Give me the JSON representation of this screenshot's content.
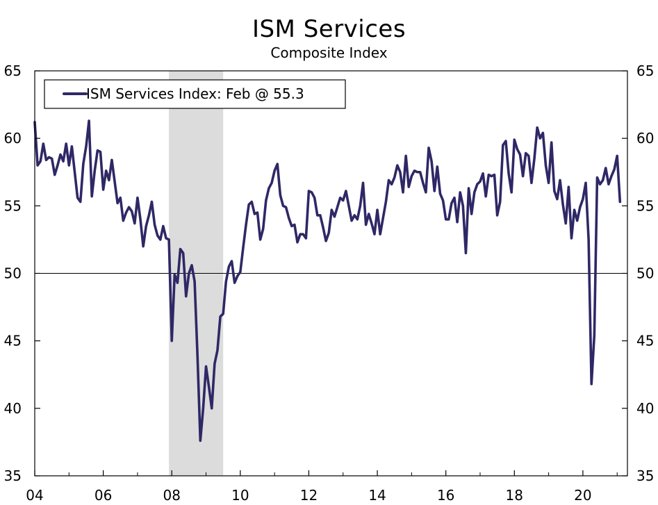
{
  "chart_data": {
    "type": "line",
    "title": "ISM Services",
    "subtitle": "Composite Index",
    "xlabel": "",
    "ylabel": "",
    "x_start": 2004.0,
    "x_step_months": 1,
    "xlim": [
      2004.0,
      2021.3
    ],
    "ylim": [
      35,
      65
    ],
    "y_ticks": [
      35,
      40,
      45,
      50,
      55,
      60,
      65
    ],
    "y_tick_labels": [
      "35",
      "40",
      "45",
      "50",
      "55",
      "60",
      "65"
    ],
    "x_ticks": [
      2004,
      2006,
      2008,
      2010,
      2012,
      2014,
      2016,
      2018,
      2020
    ],
    "x_tick_labels": [
      "04",
      "06",
      "08",
      "10",
      "12",
      "14",
      "16",
      "18",
      "20"
    ],
    "reference_line": 50,
    "recession_shading": [
      2007.917,
      2009.5
    ],
    "legend": {
      "label": "ISM Services Index: Feb @ 55.3",
      "placement": "top-left"
    },
    "colors": {
      "line": "#2e2866",
      "recession": "#dcdcdc",
      "axis": "#000000"
    },
    "series": [
      {
        "name": "ISM Services Index: Feb @ 55.3",
        "values": [
          61.2,
          58.0,
          58.3,
          59.6,
          58.4,
          58.6,
          58.5,
          57.3,
          58.0,
          58.8,
          58.3,
          59.6,
          58.0,
          59.4,
          57.5,
          55.6,
          55.3,
          58.1,
          59.4,
          61.3,
          55.7,
          57.6,
          59.1,
          59.0,
          56.2,
          57.6,
          56.9,
          58.4,
          56.8,
          55.2,
          55.6,
          53.9,
          54.5,
          54.9,
          54.6,
          53.7,
          55.6,
          54.0,
          52.0,
          53.5,
          54.3,
          55.3,
          53.6,
          52.8,
          52.5,
          53.5,
          52.6,
          52.5,
          45.0,
          49.9,
          49.3,
          51.8,
          51.5,
          48.3,
          50.0,
          50.6,
          49.4,
          43.9,
          37.6,
          40.0,
          43.1,
          41.6,
          40.0,
          43.3,
          44.3,
          46.8,
          47.0,
          49.4,
          50.5,
          50.9,
          49.3,
          49.8,
          50.1,
          51.9,
          53.6,
          55.1,
          55.3,
          54.4,
          54.5,
          52.5,
          53.3,
          55.4,
          56.3,
          56.7,
          57.6,
          58.1,
          55.8,
          55.0,
          54.9,
          54.1,
          53.5,
          53.6,
          52.3,
          52.9,
          52.9,
          52.6,
          56.1,
          56.0,
          55.6,
          54.3,
          54.3,
          53.4,
          52.4,
          53.0,
          54.7,
          54.2,
          54.9,
          55.6,
          55.4,
          56.1,
          55.0,
          53.9,
          54.3,
          54.0,
          55.0,
          56.7,
          53.6,
          54.4,
          53.7,
          52.9,
          54.7,
          52.9,
          54.1,
          55.3,
          56.9,
          56.6,
          57.1,
          58.0,
          57.5,
          56.0,
          58.7,
          56.4,
          57.2,
          57.6,
          57.5,
          57.5,
          56.7,
          56.0,
          59.3,
          58.3,
          56.1,
          57.9,
          55.9,
          55.4,
          54.0,
          54.0,
          55.2,
          55.6,
          53.8,
          56.0,
          55.0,
          51.5,
          56.3,
          54.4,
          56.0,
          56.6,
          56.8,
          57.4,
          55.7,
          57.3,
          57.2,
          57.3,
          54.3,
          55.3,
          59.5,
          59.8,
          57.4,
          56.0,
          59.9,
          59.2,
          58.8,
          57.2,
          58.9,
          58.7,
          56.7,
          58.5,
          60.8,
          60.0,
          60.4,
          58.0,
          56.7,
          59.7,
          56.1,
          55.5,
          56.9,
          55.1,
          53.7,
          56.4,
          52.6,
          54.7,
          53.9,
          54.9,
          55.5,
          56.7,
          52.5,
          41.8,
          45.4,
          57.1,
          56.6,
          56.9,
          57.8,
          56.6,
          57.2,
          57.7,
          58.7,
          55.3
        ]
      }
    ]
  }
}
